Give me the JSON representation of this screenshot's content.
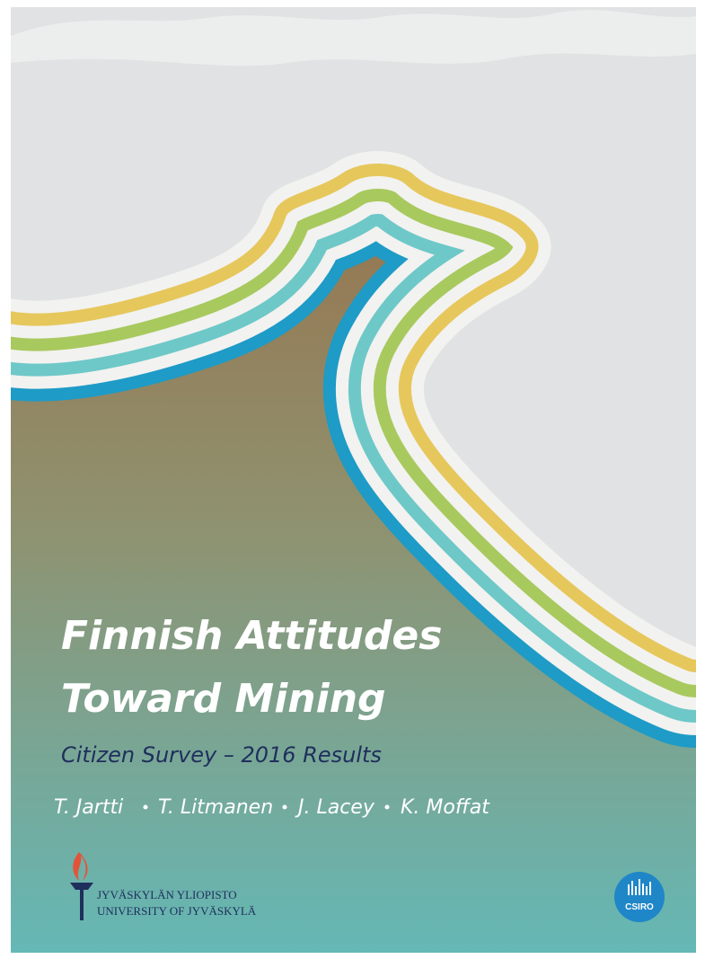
{
  "title": {
    "lines": [
      "Finnish Attitudes",
      "Toward Mining"
    ],
    "subtitle": "Citizen Survey – 2016 Results"
  },
  "authors": [
    "T. Jartti",
    "T. Litmanen",
    "J. Lacey",
    "K. Moffat"
  ],
  "logos": {
    "university": [
      "JYVÄSKYLÄN YLIOPISTO",
      "UNIVERSITY OF JYVÄSKYLÄ"
    ],
    "csiro": "CSIRO"
  }
}
